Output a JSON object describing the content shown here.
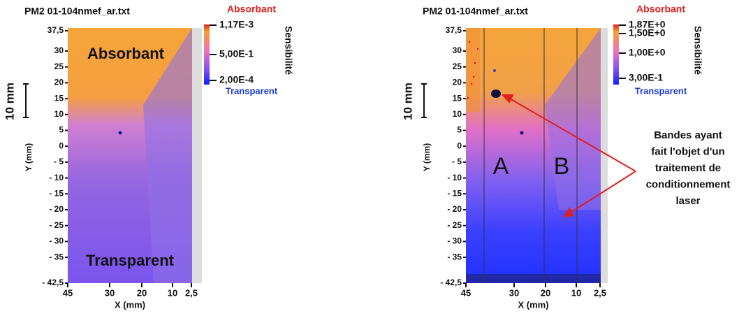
{
  "panels": [
    {
      "title": "PM2 01-104nmef_ar.txt",
      "y_axis_label": "Y (mm)",
      "x_axis_label": "X (mm)",
      "scale_label": "10 mm",
      "y_ticks": [
        "37,5",
        "30",
        "25",
        "20",
        "15",
        "10",
        "5",
        "0",
        "- 5",
        "- 10",
        "- 15",
        "- 20",
        "- 25",
        "- 30",
        "- 35",
        "- 42,5"
      ],
      "x_ticks": [
        "45",
        "30",
        "20",
        "10",
        "2,5"
      ],
      "colorbar": {
        "top_label": "Absorbant",
        "bottom_label": "Transparent",
        "title": "Sensibilité",
        "ticks": [
          "1,17E-3",
          "5,00E-1",
          "2,00E-4"
        ]
      },
      "annotations": [
        "Absorbant",
        "Transparent"
      ]
    },
    {
      "title": "PM2 01-104nmef_ar.txt",
      "y_axis_label": "Y (mm)",
      "x_axis_label": "X (mm)",
      "scale_label": "10 mm",
      "y_ticks": [
        "37,5",
        "30",
        "25",
        "20",
        "15",
        "10",
        "5",
        "0",
        "- 5",
        "- 10",
        "- 15",
        "- 20",
        "- 25",
        "- 30",
        "- 35",
        "- 42,5"
      ],
      "x_ticks": [
        "45",
        "30",
        "20",
        "10",
        "2,5"
      ],
      "colorbar": {
        "top_label": "Absorbant",
        "bottom_label": "Transparent",
        "title": "Sensibilité",
        "ticks": [
          "1,87E+0",
          "1,50E+0",
          "1,00E+0",
          "3,00E-1"
        ]
      },
      "annotations": [
        "A",
        "B"
      ]
    }
  ],
  "callout": [
    "Bandes ayant",
    "fait l'objet d'un",
    "traitement de",
    "conditionnement",
    "laser"
  ]
}
